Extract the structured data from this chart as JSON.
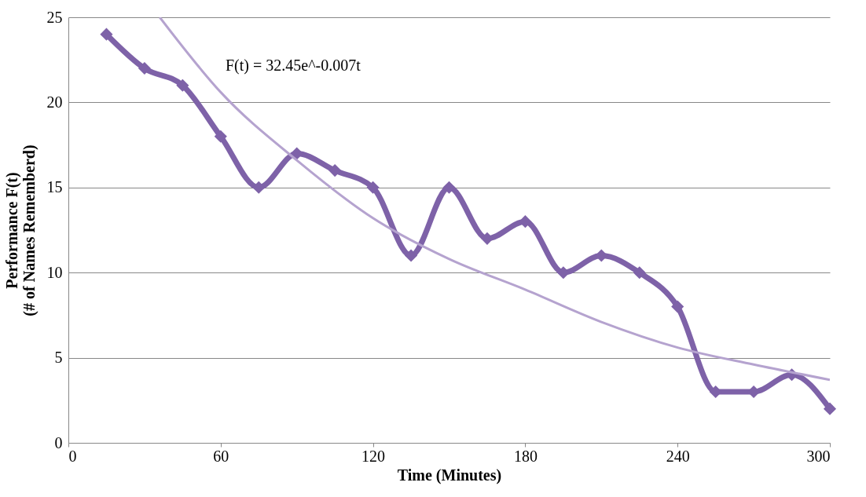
{
  "chart_data": {
    "type": "line",
    "xlabel": "Time (Minutes)",
    "ylabel": "Performance  F(t)\n(# of Names Rememberd)",
    "xlim": [
      0,
      300
    ],
    "xticks": [
      0,
      60,
      120,
      180,
      240,
      300
    ],
    "ylim": [
      0,
      25
    ],
    "yticks": [
      0,
      5,
      10,
      15,
      20,
      25
    ],
    "grid": "y",
    "series": [
      {
        "color": "#7e62a8",
        "marker": "diamond",
        "x": [
          15,
          30,
          45,
          60,
          75,
          90,
          105,
          120,
          135,
          150,
          165,
          180,
          195,
          210,
          225,
          240,
          255,
          270,
          285,
          300
        ],
        "values": [
          24,
          22,
          21,
          18,
          15,
          17,
          16,
          15,
          11,
          15,
          12,
          13,
          10,
          11,
          10,
          8,
          3,
          3,
          4,
          2
        ]
      },
      {
        "color": "#b5a3cf",
        "marker": "none",
        "x": [
          36,
          60,
          90,
          120,
          150,
          180,
          210,
          240,
          270,
          300
        ],
        "values": [
          25,
          20.6,
          16.6,
          13.2,
          10.8,
          9.0,
          7.1,
          5.6,
          4.6,
          3.7
        ]
      }
    ],
    "annotations": [
      "F(t) = 32.45e^-0.007t"
    ]
  }
}
